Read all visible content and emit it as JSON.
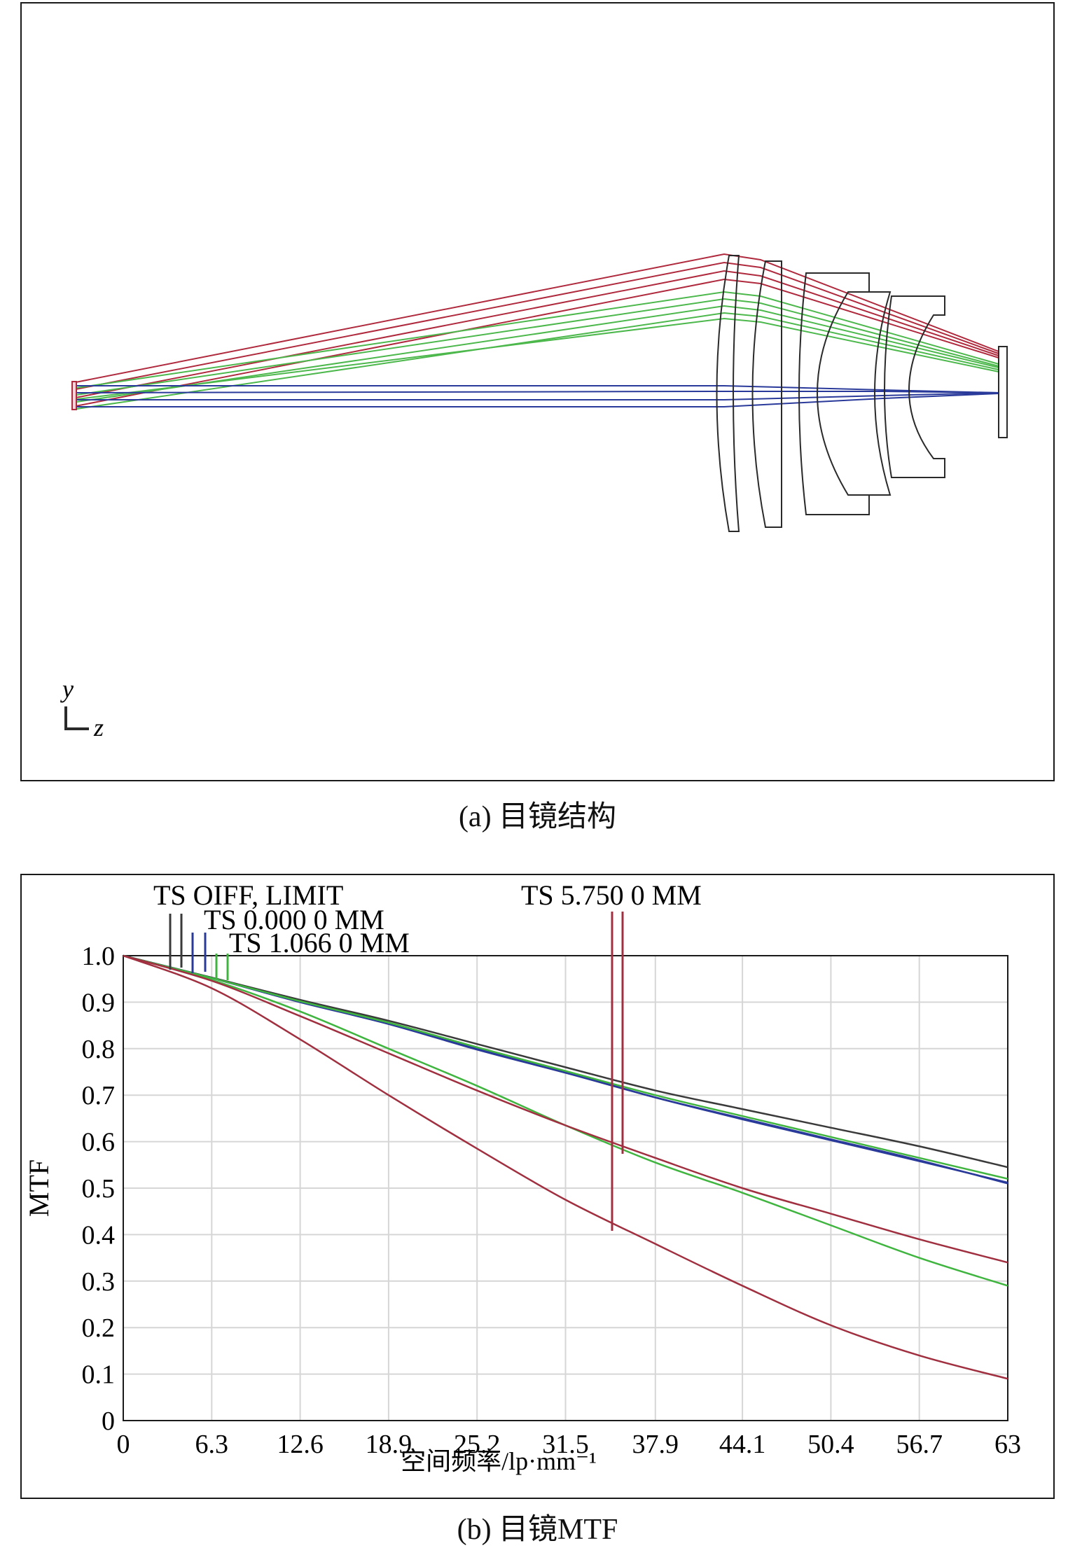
{
  "figure_a": {
    "caption": "(a) 目镜结构",
    "axis_y_label": "y",
    "axis_z_label": "z"
  },
  "figure_b": {
    "caption": "(b) 目镜MTF",
    "legend": {
      "diff_limit": "TS OIFF, LIMIT",
      "field_0": "TS 0.000 0 MM",
      "field_1": "TS 1.066 0 MM",
      "field_2": "TS 5.750 0 MM"
    }
  },
  "colors": {
    "diff_limit": "#3a3a3a",
    "field_0": "#2a3a9a",
    "field_1": "#3fb53f",
    "field_2": "#a03040",
    "lens": "#2a2a2a",
    "grid": "#d6d6d6"
  },
  "chart_data": {
    "type": "line",
    "title": "",
    "xlabel": "空间频率/lp·mm⁻¹",
    "ylabel": "MTF",
    "xlim": [
      0,
      63
    ],
    "ylim": [
      0,
      1.0
    ],
    "grid": true,
    "x_ticks": [
      "0",
      "6.3",
      "12.6",
      "18.9",
      "25.2",
      "31.5",
      "37.9",
      "44.1",
      "50.4",
      "56.7",
      "63"
    ],
    "y_ticks": [
      "0",
      "0.1",
      "0.2",
      "0.3",
      "0.4",
      "0.5",
      "0.6",
      "0.7",
      "0.8",
      "0.9",
      "1.0"
    ],
    "x": [
      0,
      6.3,
      12.6,
      18.9,
      25.2,
      31.5,
      37.9,
      44.1,
      50.4,
      56.7,
      63
    ],
    "series": [
      {
        "name": "TS OIFF, LIMIT",
        "color_key": "diff_limit",
        "values": [
          1.0,
          0.953,
          0.905,
          0.86,
          0.81,
          0.76,
          0.71,
          0.67,
          0.63,
          0.59,
          0.545
        ]
      },
      {
        "name": "TS 0.000 0 MM",
        "color_key": "field_0",
        "values": [
          1.0,
          0.952,
          0.9,
          0.855,
          0.8,
          0.75,
          0.695,
          0.65,
          0.605,
          0.56,
          0.51
        ]
      },
      {
        "name": "TS 0.000 0 MM",
        "color_key": "field_0",
        "values": [
          1.0,
          0.952,
          0.9,
          0.853,
          0.798,
          0.748,
          0.695,
          0.648,
          0.603,
          0.558,
          0.512
        ]
      },
      {
        "name": "TS 1.066 0 MM",
        "color_key": "field_1",
        "values": [
          1.0,
          0.952,
          0.902,
          0.856,
          0.803,
          0.752,
          0.7,
          0.655,
          0.61,
          0.565,
          0.52
        ]
      },
      {
        "name": "TS 1.066 0 MM",
        "color_key": "field_1",
        "values": [
          1.0,
          0.948,
          0.88,
          0.8,
          0.72,
          0.635,
          0.555,
          0.49,
          0.42,
          0.35,
          0.29
        ]
      },
      {
        "name": "TS 5.750 0 MM",
        "color_key": "field_2",
        "values": [
          1.0,
          0.946,
          0.87,
          0.79,
          0.71,
          0.635,
          0.565,
          0.5,
          0.445,
          0.39,
          0.34
        ]
      },
      {
        "name": "TS 5.750 0 MM",
        "color_key": "field_2",
        "values": [
          1.0,
          0.93,
          0.82,
          0.7,
          0.585,
          0.475,
          0.38,
          0.29,
          0.205,
          0.14,
          0.09
        ]
      }
    ]
  }
}
